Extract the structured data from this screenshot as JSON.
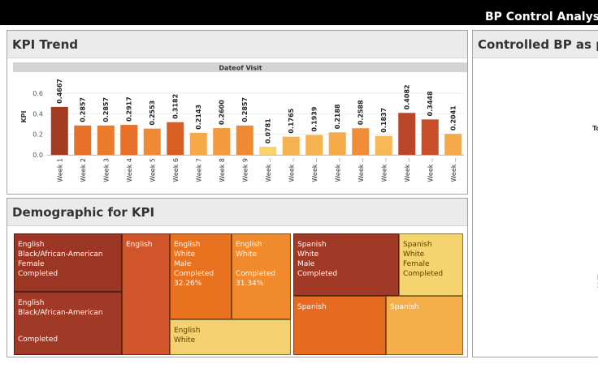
{
  "header": {
    "title": "BP Control Analysis",
    "bg": "#000000"
  },
  "kpi_trend": {
    "title": "KPI Trend",
    "chart_data": {
      "type": "bar",
      "title": "Dateof Visit",
      "ylabel": "KPI",
      "ylim": [
        0,
        0.6
      ],
      "yticks": [
        "0.0",
        "0.2",
        "0.4",
        "0.6"
      ],
      "categories": [
        "Week 1",
        "Week 2",
        "Week 3",
        "Week 4",
        "Week 5",
        "Week 6",
        "Week 7",
        "Week 8",
        "Week 9",
        "Week ..",
        "Week ..",
        "Week ..",
        "Week ..",
        "Week ..",
        "Week ..",
        "Week ..",
        "Week ..",
        "Week .."
      ],
      "values": [
        0.4667,
        0.2857,
        0.2857,
        0.2917,
        0.2553,
        0.3182,
        0.2143,
        0.26,
        0.2857,
        0.0781,
        0.1765,
        0.1939,
        0.2188,
        0.2588,
        0.1837,
        0.4082,
        0.3448,
        0.2041
      ],
      "value_labels": [
        "0.4667",
        "0.2857",
        "0.2857",
        "0.2917",
        "0.2553",
        "0.3182",
        "0.2143",
        "0.2600",
        "0.2857",
        "0.0781",
        "0.1765",
        "0.1939",
        "0.2188",
        "0.2588",
        "0.1837",
        "0.4082",
        "0.3448",
        "0.2041"
      ],
      "colors": [
        "#a33b23",
        "#e8712a",
        "#ea7a2c",
        "#e8712a",
        "#ee8a34",
        "#d85f24",
        "#f5a948",
        "#f29a3e",
        "#ee8a34",
        "#f8d36c",
        "#f6b251",
        "#f6b251",
        "#f5ab47",
        "#f08d36",
        "#f7b855",
        "#b9452a",
        "#c94f2a",
        "#f5a948"
      ]
    }
  },
  "demographic": {
    "title": "Demographic for KPI",
    "cells": [
      {
        "lines": [
          "English",
          "Black/African-American",
          "Female",
          "Completed"
        ],
        "bottom": "",
        "color": "#9c3624"
      },
      {
        "lines": [
          "English",
          "Black/African-American"
        ],
        "bottom": "Completed",
        "color": "#a03a26"
      },
      {
        "lines": [
          "English"
        ],
        "bottom": "",
        "color": "#d0552a"
      },
      {
        "lines": [
          "English",
          "White",
          "Male",
          "Completed",
          "32.26%"
        ],
        "bottom": "",
        "color": "#e8721f"
      },
      {
        "lines": [
          "English",
          "White",
          "",
          "Completed",
          "31.34%"
        ],
        "bottom": "",
        "color": "#f08a2c"
      },
      {
        "lines": [
          "English",
          "White"
        ],
        "bottom": "",
        "color": "#f4d06e"
      },
      {
        "lines": [
          "Spanish",
          "White",
          "Male",
          "Completed"
        ],
        "bottom": "",
        "color": "#a03a26"
      },
      {
        "lines": [
          "Spanish",
          "White",
          "Female",
          "Completed"
        ],
        "bottom": "",
        "color": "#f5d46f"
      },
      {
        "lines": [
          "Spanish"
        ],
        "bottom": "",
        "color": "#e76a21"
      },
      {
        "lines": [
          "Spanish"
        ],
        "bottom": "",
        "color": "#f6ae4b"
      }
    ]
  },
  "bp_panel": {
    "title": "Controlled BP as pe",
    "frag_top": "To",
    "frag_mid": "F",
    "frag_low": "2"
  }
}
